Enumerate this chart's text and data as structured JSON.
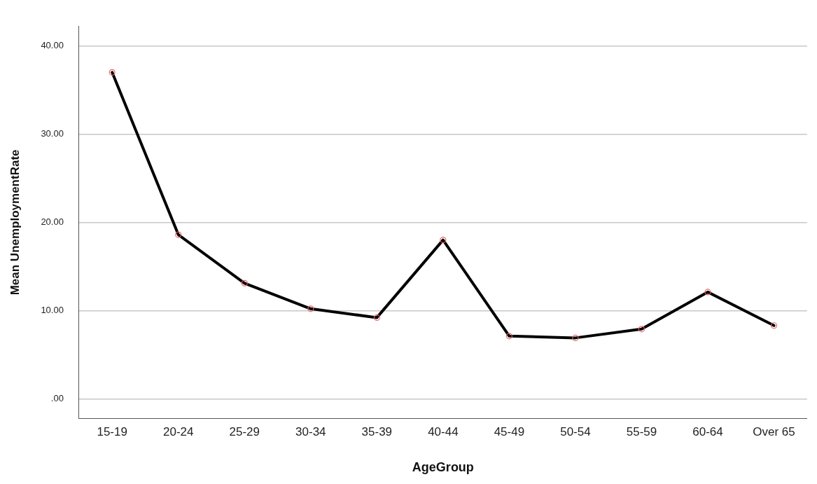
{
  "chart_data": {
    "type": "line",
    "xlabel": "AgeGroup",
    "ylabel": "Mean UnemploymentRate",
    "categories": [
      "15-19",
      "20-24",
      "25-29",
      "30-34",
      "35-39",
      "40-44",
      "45-49",
      "50-54",
      "55-59",
      "60-64",
      "Over 65"
    ],
    "series": [
      {
        "color": "#000000",
        "values": [
          37.0,
          18.6,
          13.1,
          10.2,
          9.2,
          18.0,
          7.1,
          6.9,
          7.9,
          12.1,
          8.3
        ]
      }
    ],
    "ylim": [
      -2.2,
      42.2
    ],
    "yticks": [
      {
        "value": 0,
        "label": ".00"
      },
      {
        "value": 10,
        "label": "10.00"
      },
      {
        "value": 20,
        "label": "20.00"
      },
      {
        "value": 30,
        "label": "30.00"
      },
      {
        "value": 40,
        "label": "40.00"
      }
    ],
    "grid": "y",
    "marker": "circle",
    "line_style": "solid",
    "legend": false
  }
}
